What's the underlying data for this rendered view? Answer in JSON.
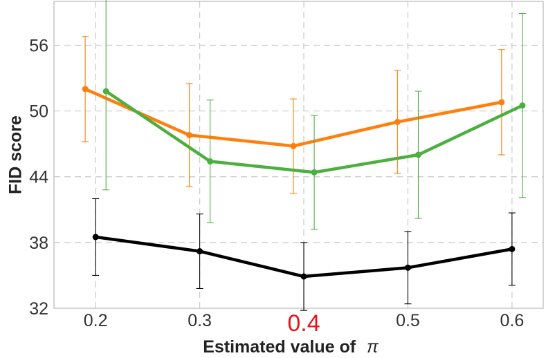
{
  "chart_data": {
    "type": "line",
    "title": "",
    "xlabel": "Estimated value of",
    "xlabel_symbol": "π",
    "ylabel": "FID score",
    "xlim": [
      0.16,
      0.63
    ],
    "ylim": [
      32,
      60
    ],
    "xticks": [
      "0.2",
      "0.3",
      "0.4",
      "0.5",
      "0.6"
    ],
    "xtick_values": [
      0.2,
      0.3,
      0.4,
      0.5,
      0.6
    ],
    "highlighted_xtick": "0.4",
    "highlight_color": "#e8141c",
    "yticks": [
      "32",
      "38",
      "44",
      "50",
      "56"
    ],
    "ytick_values": [
      32,
      38,
      44,
      50,
      56
    ],
    "grid": true,
    "legend": "none",
    "series": [
      {
        "name": "orange",
        "color": "#ff7f0e",
        "x": [
          0.19,
          0.29,
          0.39,
          0.49,
          0.59
        ],
        "values": [
          52.0,
          47.8,
          46.8,
          49.0,
          50.8
        ],
        "errors": [
          4.8,
          4.7,
          4.3,
          4.7,
          4.8
        ]
      },
      {
        "name": "green",
        "color": "#4caf3f",
        "x": [
          0.21,
          0.31,
          0.41,
          0.51,
          0.61
        ],
        "values": [
          51.8,
          45.4,
          44.4,
          46.0,
          50.5
        ],
        "errors": [
          9.0,
          5.6,
          5.2,
          5.8,
          8.4
        ]
      },
      {
        "name": "black",
        "color": "#000000",
        "x": [
          0.2,
          0.3,
          0.4,
          0.5,
          0.6
        ],
        "values": [
          38.5,
          37.2,
          34.9,
          35.7,
          37.4
        ],
        "errors": [
          3.5,
          3.4,
          3.1,
          3.3,
          3.3
        ]
      }
    ]
  }
}
